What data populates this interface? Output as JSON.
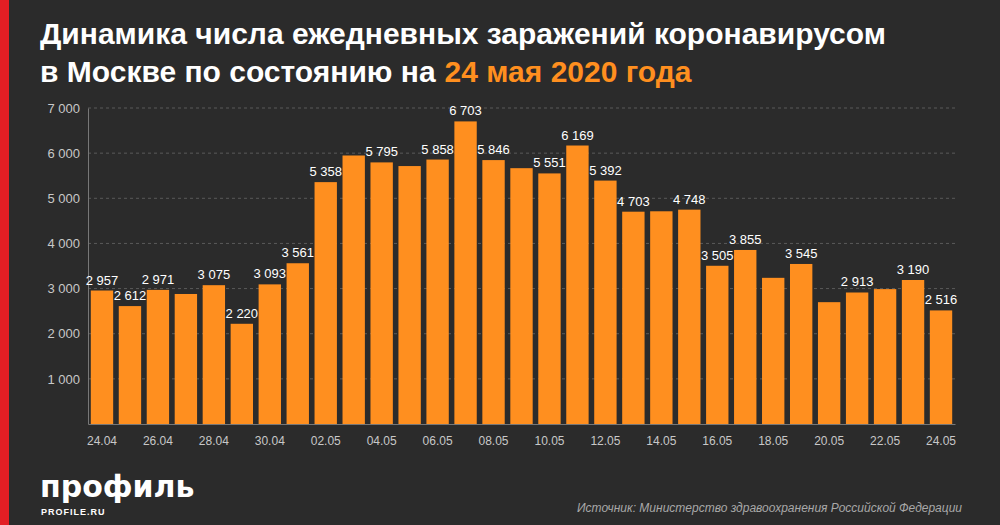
{
  "chart_data": {
    "type": "bar",
    "title": "Динамика числа ежедневных заражений коронавирусом",
    "subtitle": "в Москве по состоянию на",
    "annotations": [
      "24 мая 2020 года",
      "Источник: Министерство здравоохранения Российской Федерации",
      "профиль",
      "PROFILE.RU"
    ],
    "categories": [
      "24.04",
      null,
      "26.04",
      null,
      "28.04",
      null,
      "30.04",
      null,
      "02.05",
      null,
      "04.05",
      null,
      "06.05",
      null,
      "08.05",
      null,
      "10.05",
      null,
      "12.05",
      null,
      "14.05",
      null,
      "16.05",
      null,
      "18.05",
      null,
      "20.05",
      null,
      "22.05",
      null,
      "24.05"
    ],
    "values": [
      2957,
      2612,
      2971,
      2880,
      3075,
      2220,
      3093,
      3561,
      5358,
      5948,
      5795,
      5714,
      5858,
      6703,
      5846,
      5667,
      5551,
      6169,
      5392,
      4703,
      4712,
      4748,
      3505,
      3855,
      3238,
      3545,
      2699,
      2913,
      2988,
      3190,
      2516
    ],
    "value_labels": [
      "2 957",
      "2 612",
      "2 971",
      null,
      "3 075",
      "2 220",
      "3 093",
      "3 561",
      "5 358",
      null,
      "5 795",
      null,
      "5 858",
      "6 703",
      "5 846",
      null,
      "5 551",
      "6 169",
      "5 392",
      "4 703",
      null,
      "4 748",
      "3 505",
      "3 855",
      null,
      "3 545",
      null,
      "2 913",
      null,
      "3 190",
      "2 516"
    ],
    "data_labels": true,
    "color": "#ff8f1f",
    "ylim": [
      0,
      7000
    ],
    "yticks": [
      {
        "value": 1000,
        "label": "1 000"
      },
      {
        "value": 2000,
        "label": "2 000"
      },
      {
        "value": 3000,
        "label": "3 000"
      },
      {
        "value": 4000,
        "label": "4 000"
      },
      {
        "value": 5000,
        "label": "5 000"
      },
      {
        "value": 6000,
        "label": "6 000"
      },
      {
        "value": 7000,
        "label": "7 000"
      }
    ],
    "grid": true
  }
}
